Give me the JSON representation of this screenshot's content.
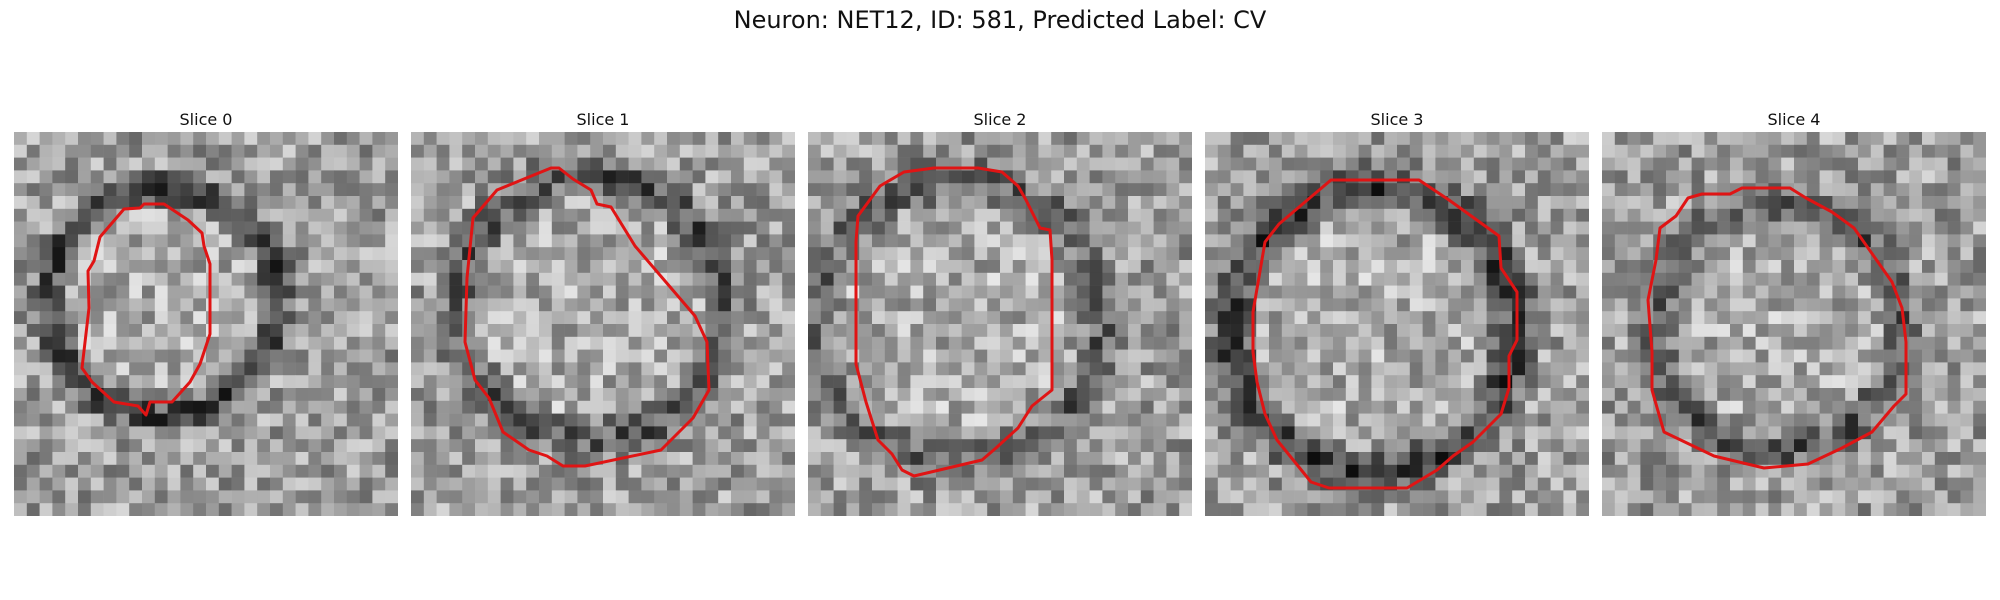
{
  "figure": {
    "title": "Neuron: NET12, ID: 581, Predicted Label: CV",
    "panels": [
      {
        "title": "Slice 0"
      },
      {
        "title": "Slice 1"
      },
      {
        "title": "Slice 2"
      },
      {
        "title": "Slice 3"
      },
      {
        "title": "Slice 4"
      }
    ],
    "contour_color": "#e01414",
    "image_colormap": "grayscale"
  }
}
